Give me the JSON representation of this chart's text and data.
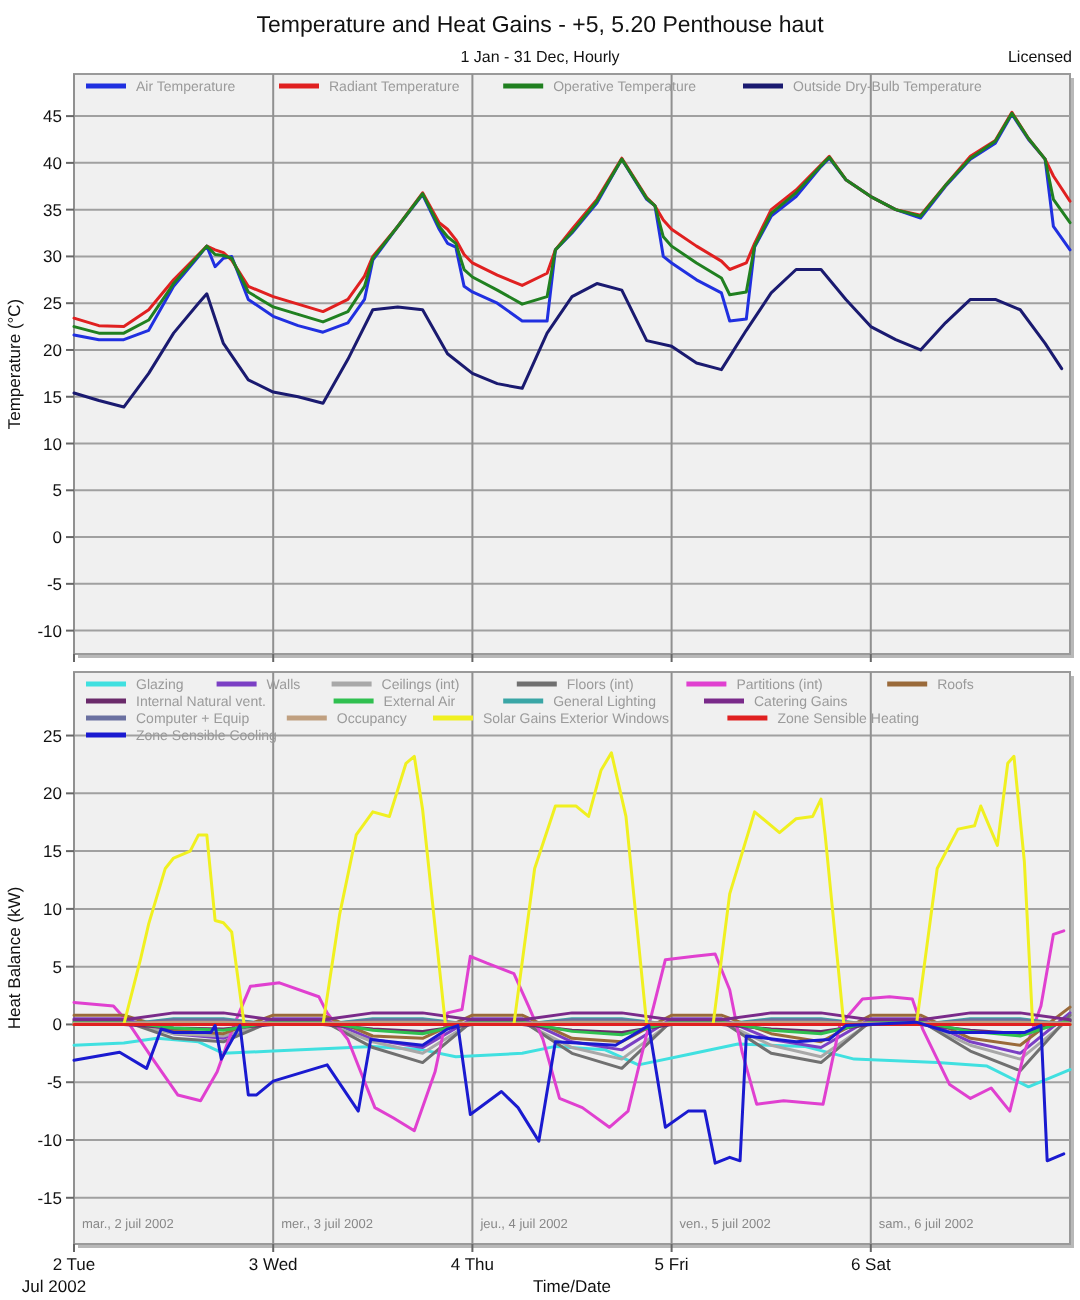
{
  "chart_data": [
    {
      "type": "line",
      "title": "Temperature and Heat Gains - +5, 5.20 Penthouse haut",
      "subtitle": "1 Jan - 31 Dec, Hourly",
      "ylabel": "Temperature (°C)",
      "annotations": [
        "Licensed"
      ],
      "xlim": [
        "2002-07-02",
        "2002-07-07"
      ],
      "xticks": [
        {
          "value": "2002-07-02",
          "label": null
        },
        {
          "value": "2002-07-03",
          "label": null
        },
        {
          "value": "2002-07-04",
          "label": null
        },
        {
          "value": "2002-07-05",
          "label": null
        },
        {
          "value": "2002-07-06",
          "label": null
        }
      ],
      "ylim": [
        -12.5,
        49.5
      ],
      "yticks": [
        -10,
        -5,
        0,
        5,
        10,
        15,
        20,
        25,
        30,
        35,
        40,
        45
      ],
      "grid": true,
      "legend": "top left",
      "tick_labels": "y",
      "x": [
        "2002-07-02T00:00",
        "2002-07-02T03:00",
        "2002-07-02T06:00",
        "2002-07-02T09:00",
        "2002-07-02T12:00",
        "2002-07-02T15:00",
        "2002-07-02T16:00",
        "2002-07-02T17:00",
        "2002-07-02T18:00",
        "2002-07-02T19:00",
        "2002-07-02T21:00",
        "2002-07-03T00:00",
        "2002-07-03T03:00",
        "2002-07-03T06:00",
        "2002-07-03T09:00",
        "2002-07-03T11:00",
        "2002-07-03T12:00",
        "2002-07-03T15:00",
        "2002-07-03T18:00",
        "2002-07-03T20:00",
        "2002-07-03T21:00",
        "2002-07-03T22:00",
        "2002-07-03T23:00",
        "2002-07-04T00:00",
        "2002-07-04T03:00",
        "2002-07-04T06:00",
        "2002-07-04T09:00",
        "2002-07-04T10:00",
        "2002-07-04T12:00",
        "2002-07-04T15:00",
        "2002-07-04T18:00",
        "2002-07-04T21:00",
        "2002-07-04T22:00",
        "2002-07-04T23:00",
        "2002-07-05T00:00",
        "2002-07-05T03:00",
        "2002-07-05T06:00",
        "2002-07-05T07:00",
        "2002-07-05T09:00",
        "2002-07-05T10:00",
        "2002-07-05T12:00",
        "2002-07-05T15:00",
        "2002-07-05T18:00",
        "2002-07-05T19:00",
        "2002-07-05T21:00",
        "2002-07-06T00:00",
        "2002-07-06T03:00",
        "2002-07-06T06:00",
        "2002-07-06T09:00",
        "2002-07-06T12:00",
        "2002-07-06T15:00",
        "2002-07-06T17:00",
        "2002-07-06T19:00",
        "2002-07-06T21:00",
        "2002-07-06T22:00",
        "2002-07-07T00:00"
      ],
      "series": [
        {
          "name": "Air Temperature",
          "color": "#2030e0",
          "values": [
            21.6,
            21.1,
            21.1,
            22.1,
            26.8,
            30,
            31.1,
            28.9,
            29.8,
            30,
            25.4,
            23.6,
            22.6,
            21.9,
            22.9,
            25.4,
            29.6,
            33.2,
            36.6,
            32.9,
            31.4,
            31,
            26.8,
            26.2,
            25,
            23.1,
            23.1,
            30.7,
            32.5,
            35.7,
            40.4,
            36.1,
            35.4,
            30,
            29.3,
            27.5,
            26.1,
            23.1,
            23.3,
            31,
            34.3,
            36.4,
            39.6,
            40.5,
            38.2,
            36.4,
            35,
            34.1,
            37.5,
            40.4,
            42.1,
            45.2,
            42.5,
            40.4,
            33.2,
            30.7
          ]
        },
        {
          "name": "Radiant Temperature",
          "color": "#e02020",
          "values": [
            23.4,
            22.6,
            22.5,
            24.3,
            27.5,
            30.2,
            31.1,
            30.7,
            30.4,
            29.6,
            26.8,
            25.7,
            24.9,
            24.1,
            25.4,
            27.9,
            30,
            33.2,
            36.8,
            33.6,
            32.9,
            31.8,
            30.2,
            29.3,
            28,
            26.9,
            28.2,
            30.7,
            32.9,
            36.1,
            40.5,
            36.3,
            35.4,
            33.9,
            32.9,
            31.1,
            29.5,
            28.6,
            29.3,
            31.4,
            35,
            37.1,
            39.8,
            40.7,
            38.2,
            36.4,
            35,
            34.4,
            37.6,
            40.7,
            42.4,
            45.4,
            42.6,
            40.4,
            38.6,
            35.9
          ]
        },
        {
          "name": "Operative Temperature",
          "color": "#208020",
          "values": [
            22.5,
            21.8,
            21.8,
            23.2,
            27.1,
            30.1,
            31.1,
            30.2,
            30.1,
            29.8,
            26.2,
            24.6,
            23.8,
            23,
            24.1,
            26.8,
            29.8,
            33.2,
            36.7,
            33.2,
            32.1,
            31.4,
            28.6,
            27.8,
            26.4,
            24.9,
            25.7,
            30.7,
            32.6,
            35.9,
            40.4,
            36.2,
            35.4,
            32.1,
            31.1,
            29.3,
            27.7,
            25.9,
            26.2,
            31.1,
            34.6,
            36.8,
            39.7,
            40.6,
            38.2,
            36.4,
            35,
            34.3,
            37.6,
            40.5,
            42.3,
            45.3,
            42.6,
            40.4,
            36.1,
            33.6
          ]
        },
        {
          "name": "Outside Dry-Bulb Temperature",
          "color": "#1a1a70",
          "x": [
            "2002-07-02T00:00",
            "2002-07-02T03:00",
            "2002-07-02T06:00",
            "2002-07-02T09:00",
            "2002-07-02T12:00",
            "2002-07-02T15:00",
            "2002-07-02T16:00",
            "2002-07-02T18:00",
            "2002-07-02T21:00",
            "2002-07-03T00:00",
            "2002-07-03T03:00",
            "2002-07-03T06:00",
            "2002-07-03T09:00",
            "2002-07-03T12:00",
            "2002-07-03T15:00",
            "2002-07-03T18:00",
            "2002-07-03T21:00",
            "2002-07-04T00:00",
            "2002-07-04T03:00",
            "2002-07-04T06:00",
            "2002-07-04T09:00",
            "2002-07-04T12:00",
            "2002-07-04T15:00",
            "2002-07-04T18:00",
            "2002-07-04T21:00",
            "2002-07-05T00:00",
            "2002-07-05T03:00",
            "2002-07-05T06:00",
            "2002-07-05T09:00",
            "2002-07-05T12:00",
            "2002-07-05T15:00",
            "2002-07-05T18:00",
            "2002-07-05T21:00",
            "2002-07-06T00:00",
            "2002-07-06T03:00",
            "2002-07-06T06:00",
            "2002-07-06T09:00",
            "2002-07-06T12:00",
            "2002-07-06T15:00",
            "2002-07-06T18:00",
            "2002-07-06T21:00",
            "2002-07-06T23:00"
          ],
          "values": [
            15.4,
            14.6,
            13.9,
            17.5,
            21.8,
            25,
            26,
            20.7,
            16.8,
            15.5,
            15,
            14.3,
            19,
            24.3,
            24.6,
            24.3,
            19.6,
            17.5,
            16.4,
            15.9,
            21.8,
            25.7,
            27.1,
            26.4,
            21,
            20.4,
            18.6,
            17.9,
            22.1,
            26.1,
            28.6,
            28.6,
            25.4,
            22.5,
            21.1,
            20,
            22.9,
            25.4,
            25.4,
            24.3,
            20.7,
            18
          ]
        }
      ]
    },
    {
      "type": "line",
      "xlabel": "Time/Date",
      "ylabel": "Heat Balance (kW)",
      "annotations": [
        "Jul 2002",
        "mar., 2 juil 2002",
        "mer., 3 juil 2002",
        "jeu., 4 juil 2002",
        "ven., 5 juil 2002",
        "sam., 6 juil 2002"
      ],
      "xlim": [
        "2002-07-02",
        "2002-07-07"
      ],
      "xticks": [
        {
          "value": "2002-07-02",
          "label": "2 Tue"
        },
        {
          "value": "2002-07-03",
          "label": "3 Wed"
        },
        {
          "value": "2002-07-04",
          "label": "4 Thu"
        },
        {
          "value": "2002-07-05",
          "label": "5 Fri"
        },
        {
          "value": "2002-07-06",
          "label": "6 Sat"
        }
      ],
      "ylim": [
        -19,
        30.5
      ],
      "yticks": [
        -15,
        -10,
        -5,
        0,
        5,
        10,
        15,
        20,
        25
      ],
      "grid": true,
      "legend": "top left",
      "x": [
        "2002-07-02T00:00",
        "2002-07-02T06:00",
        "2002-07-02T12:00",
        "2002-07-02T18:00",
        "2002-07-03T00:00",
        "2002-07-03T06:00",
        "2002-07-03T12:00",
        "2002-07-03T18:00",
        "2002-07-04T00:00",
        "2002-07-04T06:00",
        "2002-07-04T12:00",
        "2002-07-04T18:00",
        "2002-07-05T00:00",
        "2002-07-05T06:00",
        "2002-07-05T12:00",
        "2002-07-05T18:00",
        "2002-07-06T00:00",
        "2002-07-06T06:00",
        "2002-07-06T12:00",
        "2002-07-06T18:00",
        "2002-07-07T00:00"
      ],
      "series": [
        {
          "name": "Glazing",
          "color": "#40e0e0",
          "x": [
            "2002-07-02T00:00",
            "2002-07-02T06:00",
            "2002-07-02T10:00",
            "2002-07-02T15:00",
            "2002-07-02T18:00",
            "2002-07-03T00:00",
            "2002-07-03T12:00",
            "2002-07-03T18:00",
            "2002-07-03T22:00",
            "2002-07-04T06:00",
            "2002-07-04T10:00",
            "2002-07-04T16:00",
            "2002-07-04T20:00",
            "2002-07-05T02:00",
            "2002-07-05T08:00",
            "2002-07-05T16:00",
            "2002-07-05T22:00",
            "2002-07-06T08:00",
            "2002-07-06T14:00",
            "2002-07-06T19:00",
            "2002-07-07T00:00"
          ],
          "values": [
            -1.8,
            -1.6,
            -1.2,
            -1.5,
            -2.5,
            -2.3,
            -1.9,
            -2.2,
            -2.8,
            -2.5,
            -1.9,
            -2.2,
            -3.5,
            -2.6,
            -1.7,
            -1.9,
            -3,
            -3.3,
            -3.6,
            -5.4,
            -3.9
          ]
        },
        {
          "name": "Walls",
          "color": "#7b3fc4",
          "values": [
            0.5,
            0.5,
            -0.8,
            -1.2,
            0.5,
            0.5,
            -1.3,
            -2,
            0.5,
            0.5,
            -1.5,
            -2.2,
            0.5,
            0.5,
            -1.3,
            -2,
            0.5,
            0.5,
            -1.5,
            -2.5,
            1
          ]
        },
        {
          "name": "Ceilings (int)",
          "color": "#a8a8a8",
          "values": [
            0.2,
            0.2,
            -0.8,
            -1,
            0.2,
            0.2,
            -1.5,
            -2.5,
            0.2,
            0.2,
            -2,
            -3,
            0.2,
            0.2,
            -1.8,
            -2.8,
            0.2,
            0.2,
            -1.8,
            -3,
            0.5
          ]
        },
        {
          "name": "Floors (int)",
          "color": "#707070",
          "values": [
            0.3,
            0.3,
            -1.2,
            -1.5,
            0.3,
            0.3,
            -2,
            -3.3,
            0.3,
            0.3,
            -2.5,
            -3.8,
            0.3,
            0.3,
            -2.5,
            -3.3,
            0.3,
            0.3,
            -2.3,
            -4,
            0.8
          ]
        },
        {
          "name": "Partitions (int)",
          "color": "#e040d0",
          "x": [
            "2002-07-02T00:00",
            "2002-07-02T04:45",
            "2002-07-02T06:30",
            "2002-07-02T09:30",
            "2002-07-02T12:30",
            "2002-07-02T15:15",
            "2002-07-02T17:15",
            "2002-07-02T19:15",
            "2002-07-02T21:15",
            "2002-07-03T00:45",
            "2002-07-03T05:30",
            "2002-07-03T06:30",
            "2002-07-03T09:00",
            "2002-07-03T12:15",
            "2002-07-03T14:30",
            "2002-07-03T17:00",
            "2002-07-03T19:30",
            "2002-07-03T21:00",
            "2002-07-03T22:45",
            "2002-07-03T23:45",
            "2002-07-04T01:45",
            "2002-07-04T05:00",
            "2002-07-04T06:45",
            "2002-07-04T08:30",
            "2002-07-04T10:30",
            "2002-07-04T13:15",
            "2002-07-04T16:30",
            "2002-07-04T18:45",
            "2002-07-04T21:15",
            "2002-07-04T23:15",
            "2002-07-05T02:45",
            "2002-07-05T05:15",
            "2002-07-05T07:00",
            "2002-07-05T08:30",
            "2002-07-05T10:15",
            "2002-07-05T13:30",
            "2002-07-05T18:15",
            "2002-07-05T20:15",
            "2002-07-05T23:00",
            "2002-07-06T02:15",
            "2002-07-06T05:00",
            "2002-07-06T06:15",
            "2002-07-06T09:30",
            "2002-07-06T12:00",
            "2002-07-06T14:30",
            "2002-07-06T16:45",
            "2002-07-06T18:30",
            "2002-07-06T20:30",
            "2002-07-06T22:00",
            "2002-07-06T23:15"
          ],
          "values": [
            1.9,
            1.6,
            0.2,
            -3,
            -6.1,
            -6.6,
            -4.1,
            -0.1,
            3.3,
            3.6,
            2.4,
            1,
            -1.3,
            -7.2,
            -8.1,
            -9.2,
            -4.1,
            1,
            1.3,
            5.9,
            5.3,
            4.4,
            1.6,
            -1.3,
            -6.4,
            -7.2,
            -8.9,
            -7.5,
            -0.1,
            5.6,
            5.9,
            6.1,
            3,
            -2.4,
            -6.9,
            -6.6,
            -6.9,
            -0.1,
            2.2,
            2.4,
            2.2,
            -0.4,
            -5.2,
            -6.4,
            -5.5,
            -7.5,
            -2.4,
            1.6,
            7.8,
            8.1
          ]
        },
        {
          "name": "Roofs",
          "color": "#9a6a3a",
          "values": [
            0.8,
            0.8,
            -0.5,
            -0.8,
            0.8,
            0.8,
            -1,
            -1.2,
            0.8,
            0.8,
            -1.2,
            -1.5,
            0.8,
            0.8,
            -0.8,
            -1.5,
            0.8,
            0.8,
            -1.2,
            -1.8,
            1.5
          ]
        },
        {
          "name": "Internal Natural vent.",
          "color": "#6a2a6a",
          "values": [
            0,
            0,
            -0.3,
            -0.4,
            0,
            0,
            -0.4,
            -0.6,
            0,
            0,
            -0.5,
            -0.7,
            0,
            0,
            -0.4,
            -0.6,
            0,
            0,
            -0.5,
            -0.8,
            0.3
          ]
        },
        {
          "name": "External Air",
          "color": "#30c050",
          "values": [
            0.2,
            0.2,
            -0.3,
            -0.5,
            0.2,
            0.2,
            -0.5,
            -0.8,
            0.2,
            0.2,
            -0.6,
            -0.9,
            0.2,
            0.2,
            -0.5,
            -0.8,
            0.2,
            0.2,
            -0.6,
            -1,
            0.4
          ]
        },
        {
          "name": "General Lighting",
          "color": "#3aa6a6",
          "values": [
            0,
            0,
            0.5,
            0.5,
            0,
            0,
            0.5,
            0.5,
            0,
            0,
            0.5,
            0.5,
            0,
            0,
            0.5,
            0.5,
            0,
            0,
            0.5,
            0.5,
            0
          ]
        },
        {
          "name": "Catering Gains",
          "color": "#7a2a8a",
          "values": [
            0.4,
            0.4,
            1,
            1,
            0.4,
            0.4,
            1,
            1,
            0.4,
            0.4,
            1,
            1,
            0.4,
            0.4,
            1,
            1,
            0.4,
            0.4,
            1,
            1,
            0.4
          ]
        },
        {
          "name": "Computer + Equip",
          "color": "#6a70a0",
          "values": [
            0,
            0,
            0.4,
            0.4,
            0,
            0,
            0.4,
            0.4,
            0,
            0,
            0.4,
            0.4,
            0,
            0,
            0.4,
            0.4,
            0,
            0,
            0.4,
            0.4,
            0
          ]
        },
        {
          "name": "Occupancy",
          "color": "#c0a080",
          "values": [
            0.1,
            0.1,
            0.2,
            0.2,
            0.1,
            0.1,
            0.2,
            0.2,
            0.1,
            0.1,
            0.2,
            0.2,
            0.1,
            0.1,
            0.2,
            0.2,
            0.1,
            0.1,
            0.2,
            0.2,
            0.1
          ]
        },
        {
          "name": "Solar Gains Exterior Windows",
          "color": "#f0f020",
          "x": [
            "2002-07-02T00:00",
            "2002-07-02T06:00",
            "2002-07-02T08:00",
            "2002-07-02T09:00",
            "2002-07-02T11:00",
            "2002-07-02T12:00",
            "2002-07-02T14:00",
            "2002-07-02T15:00",
            "2002-07-02T16:00",
            "2002-07-02T17:00",
            "2002-07-02T18:00",
            "2002-07-02T19:00",
            "2002-07-02T20:30",
            "2002-07-03T06:00",
            "2002-07-03T08:00",
            "2002-07-03T10:00",
            "2002-07-03T12:00",
            "2002-07-03T14:00",
            "2002-07-03T15:00",
            "2002-07-03T16:00",
            "2002-07-03T17:00",
            "2002-07-03T18:00",
            "2002-07-03T20:45",
            "2002-07-04T05:00",
            "2002-07-04T07:30",
            "2002-07-04T10:00",
            "2002-07-04T12:30",
            "2002-07-04T14:00",
            "2002-07-04T15:30",
            "2002-07-04T16:45",
            "2002-07-04T18:30",
            "2002-07-04T21:00",
            "2002-07-05T05:00",
            "2002-07-05T07:00",
            "2002-07-05T10:00",
            "2002-07-05T13:00",
            "2002-07-05T15:00",
            "2002-07-05T17:00",
            "2002-07-05T18:00",
            "2002-07-05T18:30",
            "2002-07-05T20:45",
            "2002-07-06T05:30",
            "2002-07-06T08:00",
            "2002-07-06T10:30",
            "2002-07-06T12:30",
            "2002-07-06T13:15",
            "2002-07-06T15:15",
            "2002-07-06T16:30",
            "2002-07-06T17:15",
            "2002-07-06T18:30",
            "2002-07-06T19:30",
            "2002-07-07T00:00"
          ],
          "values": [
            0,
            0,
            5.6,
            8.7,
            13.5,
            14.4,
            15,
            16.4,
            16.4,
            9,
            8.8,
            8,
            0,
            0,
            9.5,
            16.4,
            18.4,
            18,
            20.3,
            22.6,
            23.2,
            18.6,
            0,
            0,
            13.5,
            18.9,
            18.9,
            18,
            22,
            23.5,
            18,
            0,
            0,
            11.3,
            18.4,
            16.6,
            17.8,
            18,
            19.5,
            16.4,
            0,
            0,
            13.5,
            16.9,
            17.2,
            18.9,
            15.5,
            22.6,
            23.2,
            14.1,
            0,
            0
          ]
        },
        {
          "name": "Zone Sensible Heating",
          "color": "#e02020",
          "values": [
            0,
            0,
            0,
            0,
            0,
            0,
            0,
            0,
            0,
            0,
            0,
            0,
            0,
            0,
            0,
            0,
            0,
            0,
            0,
            0,
            0
          ]
        },
        {
          "name": "Zone Sensible Cooling",
          "color": "#1a1ad0",
          "x": [
            "2002-07-02T00:00",
            "2002-07-02T05:30",
            "2002-07-02T08:45",
            "2002-07-02T10:30",
            "2002-07-02T12:00",
            "2002-07-02T16:30",
            "2002-07-02T17:00",
            "2002-07-02T17:45",
            "2002-07-02T20:00",
            "2002-07-02T21:00",
            "2002-07-02T22:00",
            "2002-07-03T00:00",
            "2002-07-03T06:30",
            "2002-07-03T10:15",
            "2002-07-03T11:45",
            "2002-07-03T18:00",
            "2002-07-03T21:00",
            "2002-07-03T22:15",
            "2002-07-03T23:45",
            "2002-07-04T03:30",
            "2002-07-04T05:30",
            "2002-07-04T08:00",
            "2002-07-04T10:00",
            "2002-07-04T17:15",
            "2002-07-04T21:15",
            "2002-07-04T23:15",
            "2002-07-05T02:00",
            "2002-07-05T04:00",
            "2002-07-05T05:15",
            "2002-07-05T07:00",
            "2002-07-05T08:15",
            "2002-07-05T09:00",
            "2002-07-05T15:00",
            "2002-07-05T19:00",
            "2002-07-05T21:00",
            "2002-07-06T05:30",
            "2002-07-06T09:30",
            "2002-07-06T18:30",
            "2002-07-06T20:30",
            "2002-07-06T21:15",
            "2002-07-06T23:15"
          ],
          "values": [
            -3.1,
            -2.4,
            -3.8,
            -0.4,
            -0.7,
            -0.7,
            -0.1,
            -3,
            -0.1,
            -6.1,
            -6.1,
            -4.9,
            -3.5,
            -7.5,
            -1.3,
            -1.8,
            -0.4,
            -0.1,
            -7.8,
            -5.8,
            -7.2,
            -10.1,
            -1.5,
            -1.8,
            -0.1,
            -8.9,
            -7.5,
            -7.5,
            -12,
            -11.5,
            -11.8,
            -1,
            -1.5,
            -1.3,
            -0.1,
            0.2,
            -0.7,
            -0.7,
            -0.1,
            -11.8,
            -11.2
          ]
        }
      ]
    }
  ]
}
